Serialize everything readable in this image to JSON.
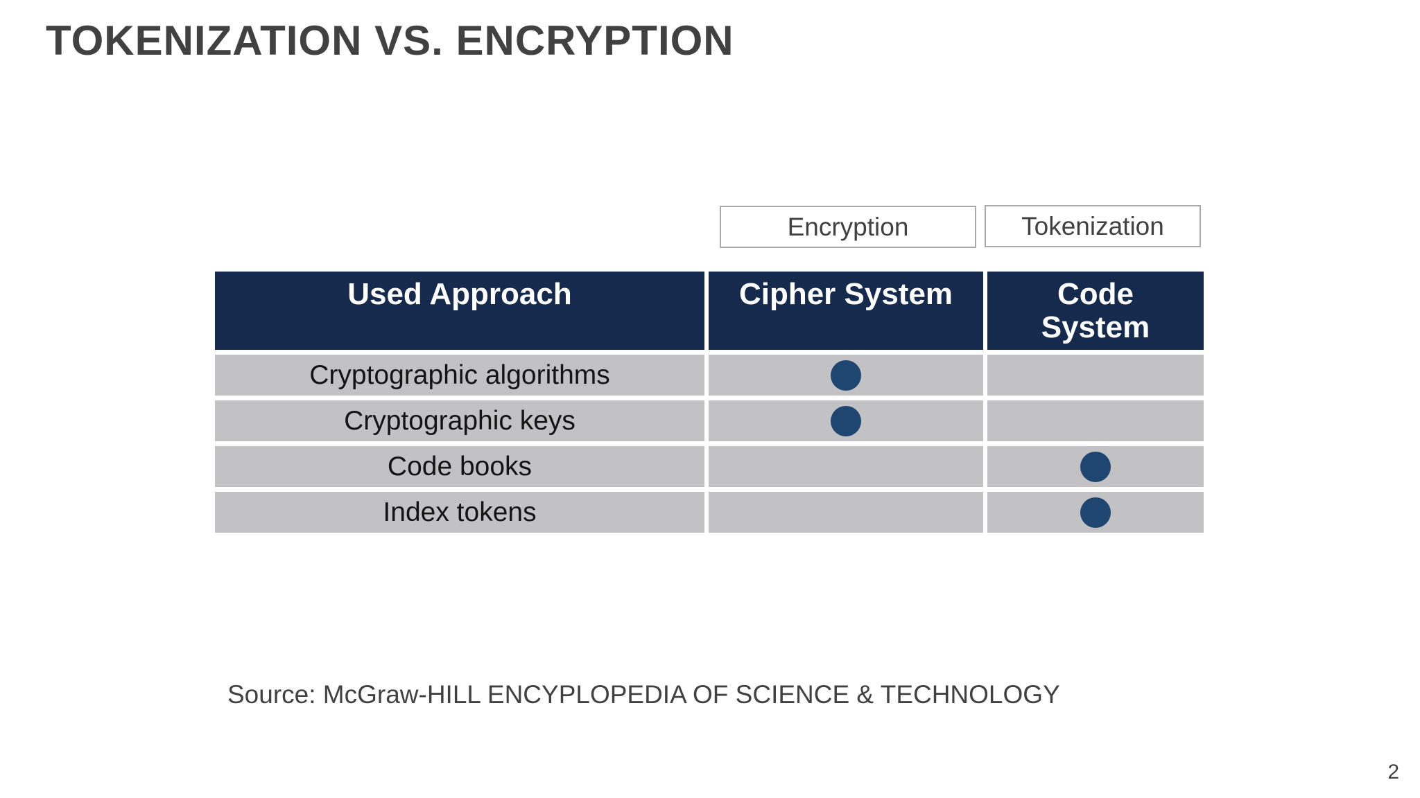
{
  "slide": {
    "title": "TOKENIZATION VS. ENCRYPTION",
    "source_note": "Source: McGraw-HILL ENCYPLOPEDIA OF SCIENCE & TECHNOLOGY",
    "page_number": "2"
  },
  "category_labels": {
    "encryption": "Encryption",
    "tokenization": "Tokenization"
  },
  "comparison_table": {
    "headers": [
      "Used Approach",
      "Cipher System",
      "Code System"
    ],
    "rows": [
      {
        "approach": "Cryptographic algorithms",
        "cipher_system": true,
        "code_system": false
      },
      {
        "approach": "Cryptographic keys",
        "cipher_system": true,
        "code_system": false
      },
      {
        "approach": "Code books",
        "cipher_system": false,
        "code_system": true
      },
      {
        "approach": "Index tokens",
        "cipher_system": false,
        "code_system": true
      }
    ]
  },
  "colors": {
    "title_text": "#414141",
    "header_background": "#152a4d",
    "header_text": "#ffffff",
    "row_background": "#c2c2c4",
    "dot": "#1f4571",
    "box_border": "#a9a9a9"
  }
}
